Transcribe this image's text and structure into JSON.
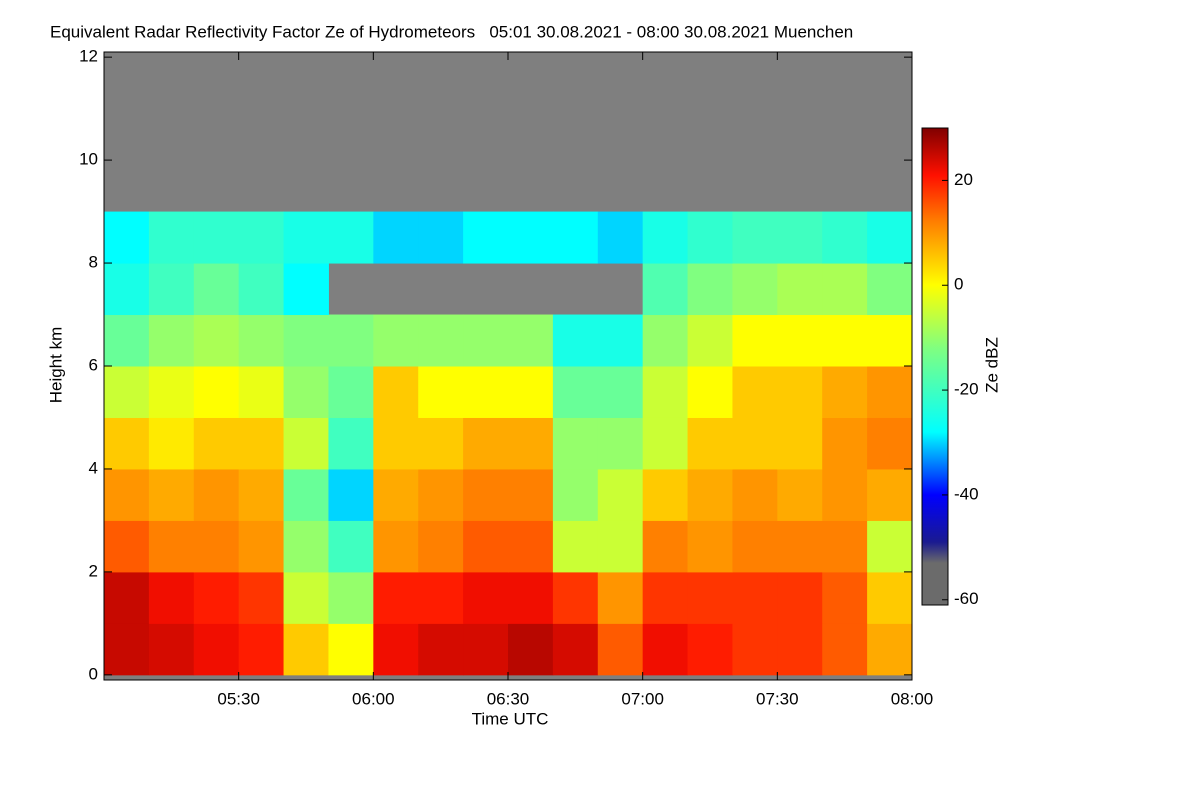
{
  "chart_data": {
    "type": "heatmap",
    "title": "Equivalent Radar Reflectivity Factor Ze of Hydrometeors   05:01 30.08.2021 - 08:00 30.08.2021 Muenchen",
    "x_label": "Time UTC",
    "y_label": "Height km",
    "colorbar_label": "Ze dBZ",
    "xlim": [
      300,
      480
    ],
    "xticks": [
      {
        "value": 330,
        "label": "05:30"
      },
      {
        "value": 360,
        "label": "06:00"
      },
      {
        "value": 390,
        "label": "06:30"
      },
      {
        "value": 420,
        "label": "07:00"
      },
      {
        "value": 450,
        "label": "07:30"
      },
      {
        "value": 480,
        "label": "08:00"
      }
    ],
    "ylim": [
      -0.1,
      12.1
    ],
    "yticks": [
      0,
      2,
      4,
      6,
      8,
      10,
      12
    ],
    "zlim": [
      -61,
      30
    ],
    "zticks": [
      -60,
      -40,
      -20,
      0,
      20
    ],
    "colorscale": [
      {
        "value": -61,
        "color": "#6b6b6b"
      },
      {
        "value": -53,
        "color": "#6b6b6b"
      },
      {
        "value": -49,
        "color": "#1a1a90"
      },
      {
        "value": -40,
        "color": "#0000ff"
      },
      {
        "value": -28,
        "color": "#00ffff"
      },
      {
        "value": -12,
        "color": "#80ff80"
      },
      {
        "value": 0,
        "color": "#ffff00"
      },
      {
        "value": 12,
        "color": "#ff8000"
      },
      {
        "value": 21,
        "color": "#ff1000"
      },
      {
        "value": 30,
        "color": "#800000"
      }
    ],
    "xbins": [
      300,
      310,
      320,
      330,
      340,
      350,
      360,
      370,
      380,
      390,
      400,
      410,
      420,
      430,
      440,
      450,
      460,
      470,
      480
    ],
    "ybins": [
      0,
      1,
      2,
      3,
      4,
      5,
      6,
      7,
      8,
      9,
      10,
      11,
      12
    ],
    "z": [
      [
        25,
        24,
        22,
        20,
        5,
        0,
        22,
        24,
        24,
        26,
        24,
        15,
        22,
        20,
        18,
        18,
        15,
        8
      ],
      [
        25,
        22,
        20,
        18,
        -5,
        -10,
        20,
        20,
        22,
        22,
        18,
        10,
        18,
        18,
        18,
        18,
        15,
        5
      ],
      [
        15,
        12,
        12,
        10,
        -10,
        -20,
        10,
        12,
        15,
        15,
        -5,
        -5,
        12,
        10,
        12,
        12,
        12,
        -5
      ],
      [
        10,
        8,
        10,
        8,
        -15,
        -30,
        8,
        10,
        12,
        12,
        -10,
        -5,
        5,
        8,
        10,
        8,
        10,
        8
      ],
      [
        5,
        2,
        5,
        5,
        -5,
        -20,
        5,
        5,
        8,
        8,
        -10,
        -10,
        -5,
        5,
        5,
        5,
        10,
        12
      ],
      [
        -5,
        -2,
        0,
        -2,
        -10,
        -15,
        5,
        0,
        0,
        0,
        -15,
        -15,
        -5,
        0,
        5,
        5,
        8,
        10
      ],
      [
        -15,
        -10,
        -8,
        -10,
        -12,
        -12,
        -10,
        -10,
        -10,
        -10,
        -25,
        -25,
        -10,
        -5,
        0,
        0,
        0,
        0
      ],
      [
        -25,
        -20,
        -15,
        -20,
        -28,
        null,
        null,
        null,
        null,
        null,
        null,
        null,
        -18,
        -12,
        -10,
        -8,
        -8,
        -12
      ],
      [
        -28,
        -22,
        -22,
        -22,
        -25,
        -25,
        -30,
        -30,
        -28,
        -28,
        -28,
        -30,
        -25,
        -22,
        -20,
        -20,
        -22,
        -25
      ],
      [
        null,
        null,
        null,
        null,
        null,
        null,
        null,
        null,
        null,
        null,
        null,
        null,
        null,
        null,
        null,
        null,
        null,
        null
      ],
      [
        null,
        null,
        null,
        null,
        null,
        null,
        null,
        null,
        null,
        null,
        null,
        null,
        null,
        null,
        null,
        null,
        null,
        null
      ],
      [
        null,
        null,
        null,
        null,
        null,
        null,
        null,
        null,
        null,
        null,
        null,
        null,
        null,
        null,
        null,
        null,
        null,
        null
      ]
    ]
  }
}
